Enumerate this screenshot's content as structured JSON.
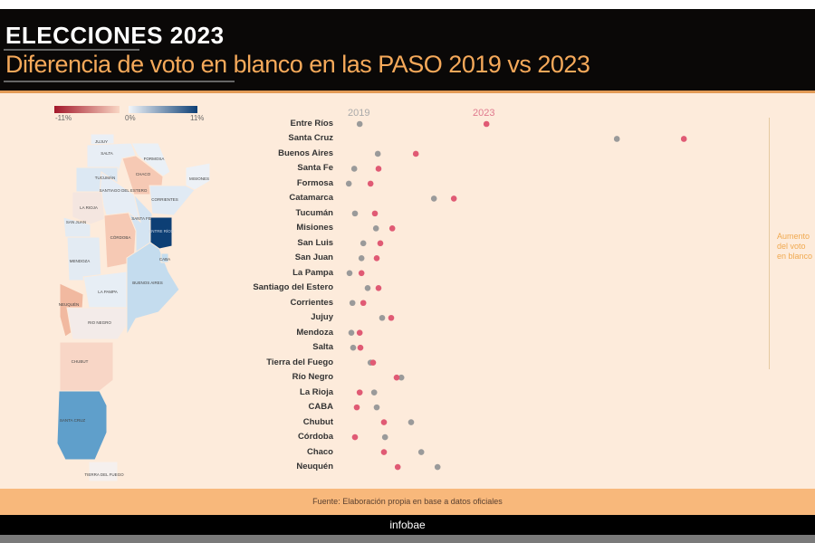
{
  "header": {
    "title": "ELECCIONES 2023",
    "subtitle": "Diferencia de voto en blanco en las PASO 2019 vs 2023"
  },
  "legend": {
    "min_label": "-11%",
    "mid_label": "0%",
    "max_label": "11%",
    "neg_color": "#a3172a",
    "pos_color": "#0d3f75"
  },
  "map": {
    "provinces": [
      {
        "name": "JUJUY",
        "color": "#eaeff5"
      },
      {
        "name": "SALTA",
        "color": "#e8eef5"
      },
      {
        "name": "FORMOSA",
        "color": "#eaf0f6"
      },
      {
        "name": "CHACO",
        "color": "#f6c9b4"
      },
      {
        "name": "TUCUMÁN",
        "color": "#dce8f3"
      },
      {
        "name": "SANTIAGO DEL ESTERO",
        "color": "#e6edf5"
      },
      {
        "name": "MISIONES",
        "color": "#edf1f6"
      },
      {
        "name": "CORRIENTES",
        "color": "#e0eaf4"
      },
      {
        "name": "LA RIOJA",
        "color": "#f4e6e0"
      },
      {
        "name": "SAN JUAN",
        "color": "#e3ebf3"
      },
      {
        "name": "CÓRDOBA",
        "color": "#f6c9b4"
      },
      {
        "name": "SANTA FE",
        "color": "#d4e4f2"
      },
      {
        "name": "ENTRE RÍOS",
        "color": "#0d3f75"
      },
      {
        "name": "MENDOZA",
        "color": "#e3ebf3"
      },
      {
        "name": "BUENOS AIRES",
        "color": "#c4dcee"
      },
      {
        "name": "CABA",
        "color": "#c4dcee"
      },
      {
        "name": "LA PAMPA",
        "color": "#e7eef5"
      },
      {
        "name": "NEUQUÉN",
        "color": "#f1b9a0"
      },
      {
        "name": "RIO NEGRO",
        "color": "#f3ebe9"
      },
      {
        "name": "CHUBUT",
        "color": "#f8d6c6"
      },
      {
        "name": "SANTA CRUZ",
        "color": "#5f9fcb"
      },
      {
        "name": "TIERRA DEL FUEGO",
        "color": "#f5f0ee"
      }
    ]
  },
  "chart_data": {
    "type": "scatter",
    "series_labels": {
      "a": "2019",
      "b": "2023"
    },
    "colors": {
      "a": "#9a9a9a",
      "b": "#e05a74"
    },
    "categories": [
      "Entre Ríos",
      "Santa Cruz",
      "Buenos Aires",
      "Santa Fe",
      "Formosa",
      "Catamarca",
      "Tucumán",
      "Misiones",
      "San Luis",
      "San Juan",
      "La Pampa",
      "Santiago del Estero",
      "Corrientes",
      "Jujuy",
      "Mendoza",
      "Salta",
      "Tierra del Fuego",
      "Río Negro",
      "La Rioja",
      "CABA",
      "Chubut",
      "Córdoba",
      "Chaco",
      "Neuquén"
    ],
    "series": [
      {
        "name": "2019",
        "values": [
          4.3,
          75.3,
          9.3,
          2.8,
          1.3,
          24.8,
          3,
          8.8,
          5.3,
          4.8,
          1.5,
          6.5,
          2.3,
          10.5,
          2,
          2.5,
          7.3,
          15.8,
          8.3,
          9,
          18.5,
          11.3,
          21.3,
          25.8
        ]
      },
      {
        "name": "2023",
        "values": [
          39.3,
          93.8,
          19.8,
          9.5,
          7.3,
          30.3,
          8.5,
          13.3,
          10,
          9,
          4.8,
          9.5,
          5.3,
          13,
          4.3,
          4.5,
          8,
          14.5,
          4.3,
          3.5,
          11,
          3,
          11,
          14.8
        ]
      }
    ],
    "annotation": "Aumento\ndel voto\nen blanco",
    "grid": false
  },
  "footer": {
    "source": "Fuente:  Elaboración propia en base a datos oficiales",
    "brand": "infobae"
  }
}
